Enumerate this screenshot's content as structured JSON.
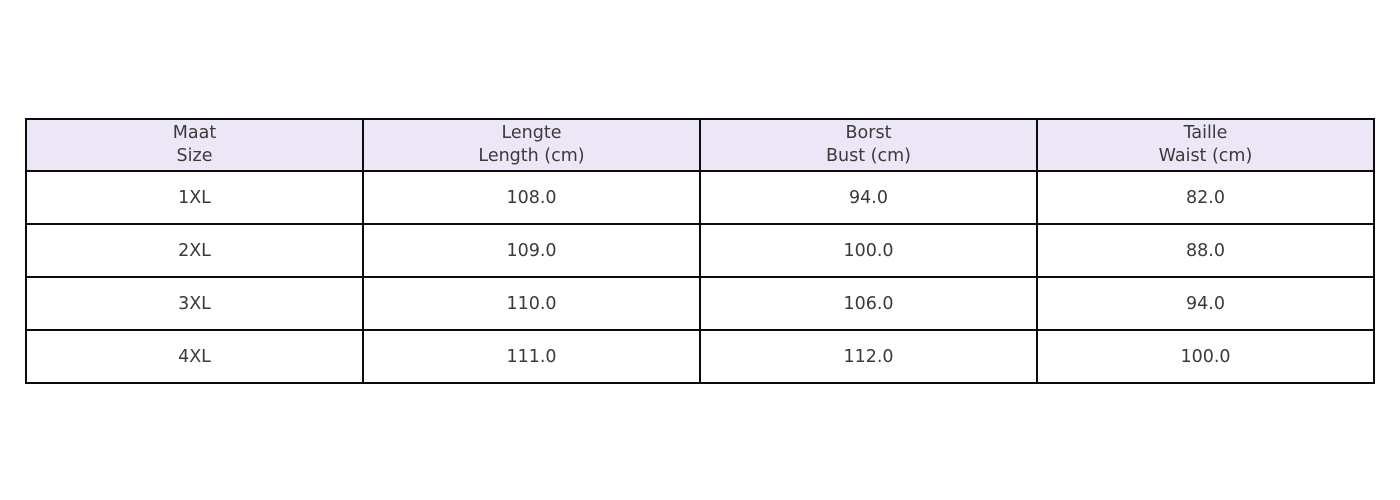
{
  "table": {
    "columns": [
      {
        "line1": "Maat",
        "line2": "Size"
      },
      {
        "line1": "Lengte",
        "line2": "Length (cm)"
      },
      {
        "line1": "Borst",
        "line2": "Bust (cm)"
      },
      {
        "line1": "Taille",
        "line2": "Waist (cm)"
      }
    ],
    "rows": [
      [
        "1XL",
        "108.0",
        "94.0",
        "82.0"
      ],
      [
        "2XL",
        "109.0",
        "100.0",
        "88.0"
      ],
      [
        "3XL",
        "110.0",
        "106.0",
        "94.0"
      ],
      [
        "4XL",
        "111.0",
        "112.0",
        "100.0"
      ]
    ],
    "colors": {
      "header_bg": "#ece6f7",
      "border": "#0c0c0c",
      "text": "#3a3a3a"
    }
  },
  "chart_data": {
    "type": "table",
    "title": "",
    "column_headers": [
      "Maat Size",
      "Lengte Length (cm)",
      "Borst Bust (cm)",
      "Taille Waist (cm)"
    ],
    "rows": [
      {
        "size": "1XL",
        "length_cm": 108.0,
        "bust_cm": 94.0,
        "waist_cm": 82.0
      },
      {
        "size": "2XL",
        "length_cm": 109.0,
        "bust_cm": 100.0,
        "waist_cm": 88.0
      },
      {
        "size": "3XL",
        "length_cm": 110.0,
        "bust_cm": 106.0,
        "waist_cm": 94.0
      },
      {
        "size": "4XL",
        "length_cm": 111.0,
        "bust_cm": 112.0,
        "waist_cm": 100.0
      }
    ],
    "layout": {
      "header_background": "#ece6f7",
      "grid": "on",
      "cell_alignment": "center"
    }
  }
}
